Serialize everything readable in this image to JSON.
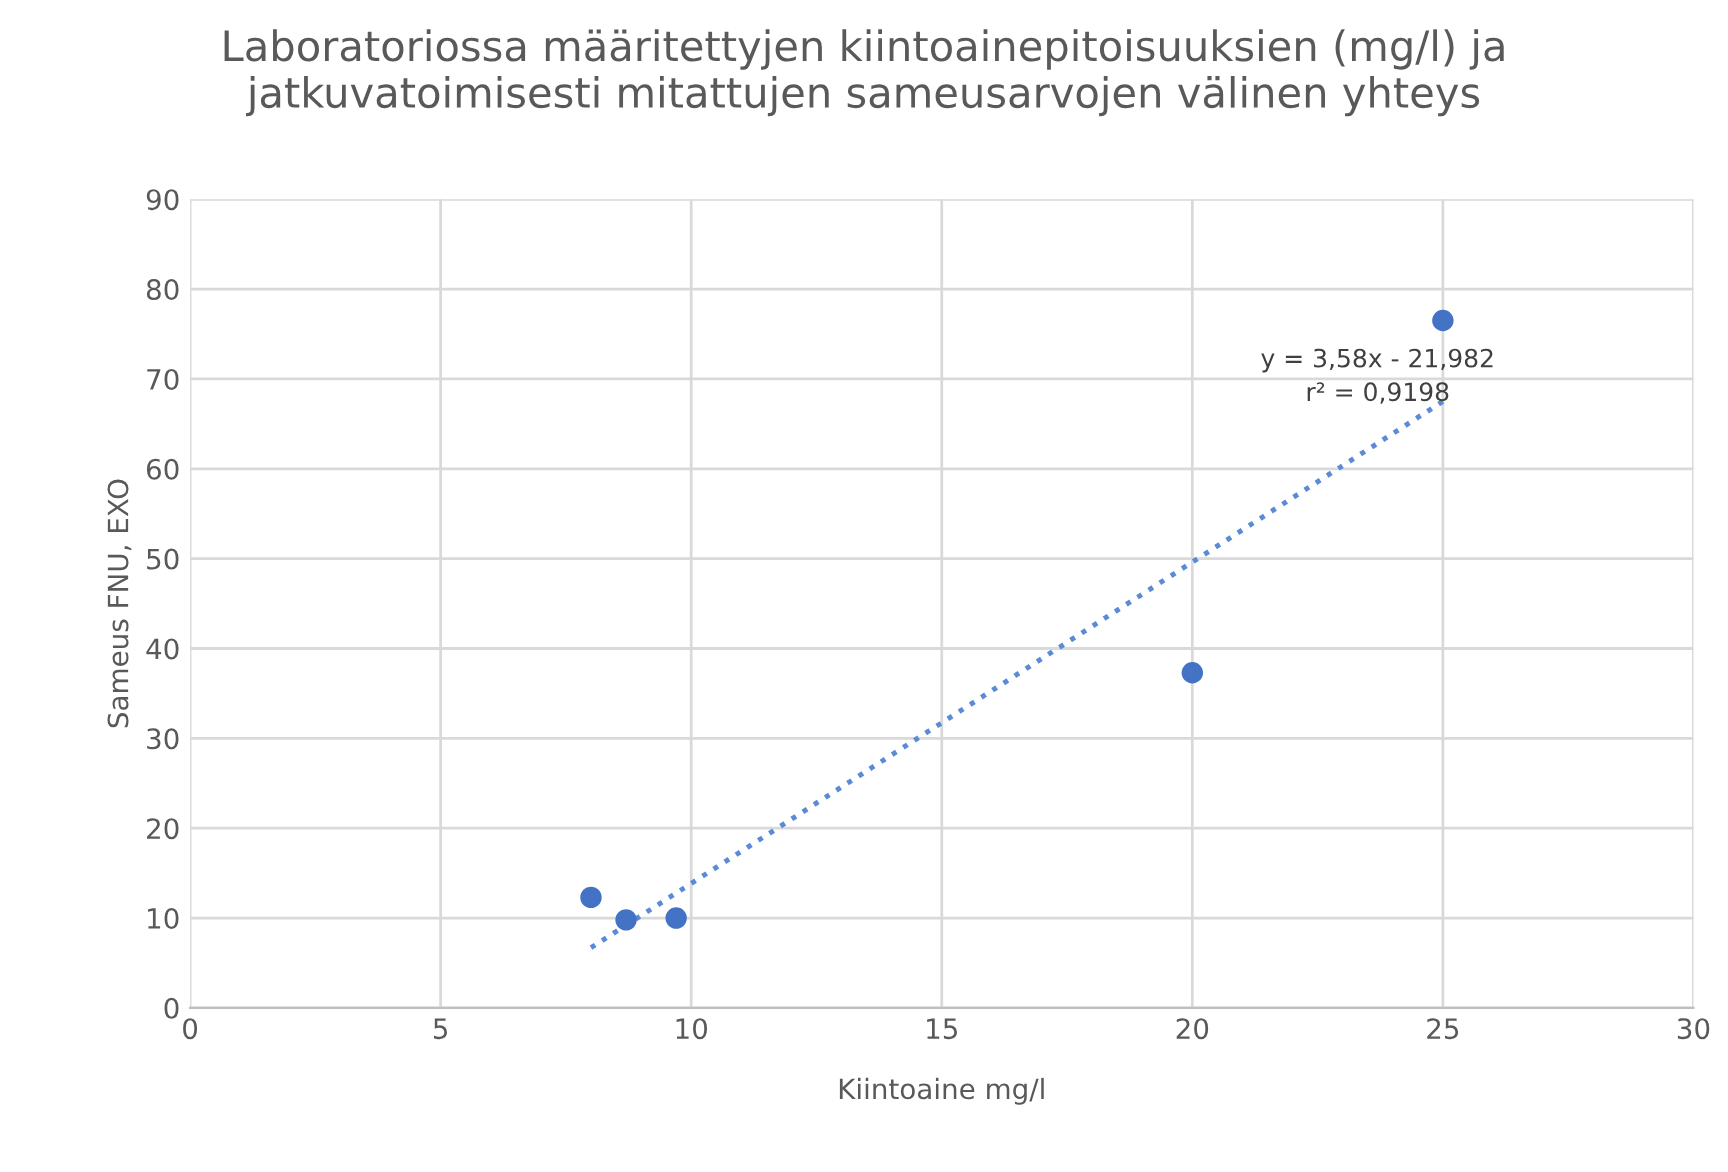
{
  "chart_data": {
    "type": "scatter",
    "title": "Laboratoriossa määritettyjen kiintoainepitoisuuksien (mg/l) ja\njatkuvatoimisesti mitattujen sameusarvojen välinen yhteys",
    "xlabel": "Kiintoaine mg/l",
    "ylabel": "Sameus FNU, EXO",
    "series": [
      {
        "color": "#4472c4",
        "marker": "circle",
        "x": [
          8,
          8.7,
          9.7,
          20,
          25
        ],
        "values": [
          12.3,
          9.8,
          10,
          37.3,
          76.5
        ]
      },
      {
        "type": "line",
        "color": "#5b8bd6",
        "line_style": "dotted",
        "marker": "none",
        "x": [
          8,
          25
        ],
        "values": [
          6.7,
          67.5
        ]
      }
    ],
    "annotations": [
      "y = 3,58x - 21,982\nr² = 0,9198"
    ],
    "xlim": [
      0,
      30
    ],
    "xticks": [
      0,
      5,
      10,
      15,
      20,
      25,
      30
    ],
    "ylim": [
      0,
      90
    ],
    "yticks": [
      0,
      10,
      20,
      30,
      40,
      50,
      60,
      70,
      80,
      90
    ],
    "grid": true,
    "legend": false
  }
}
